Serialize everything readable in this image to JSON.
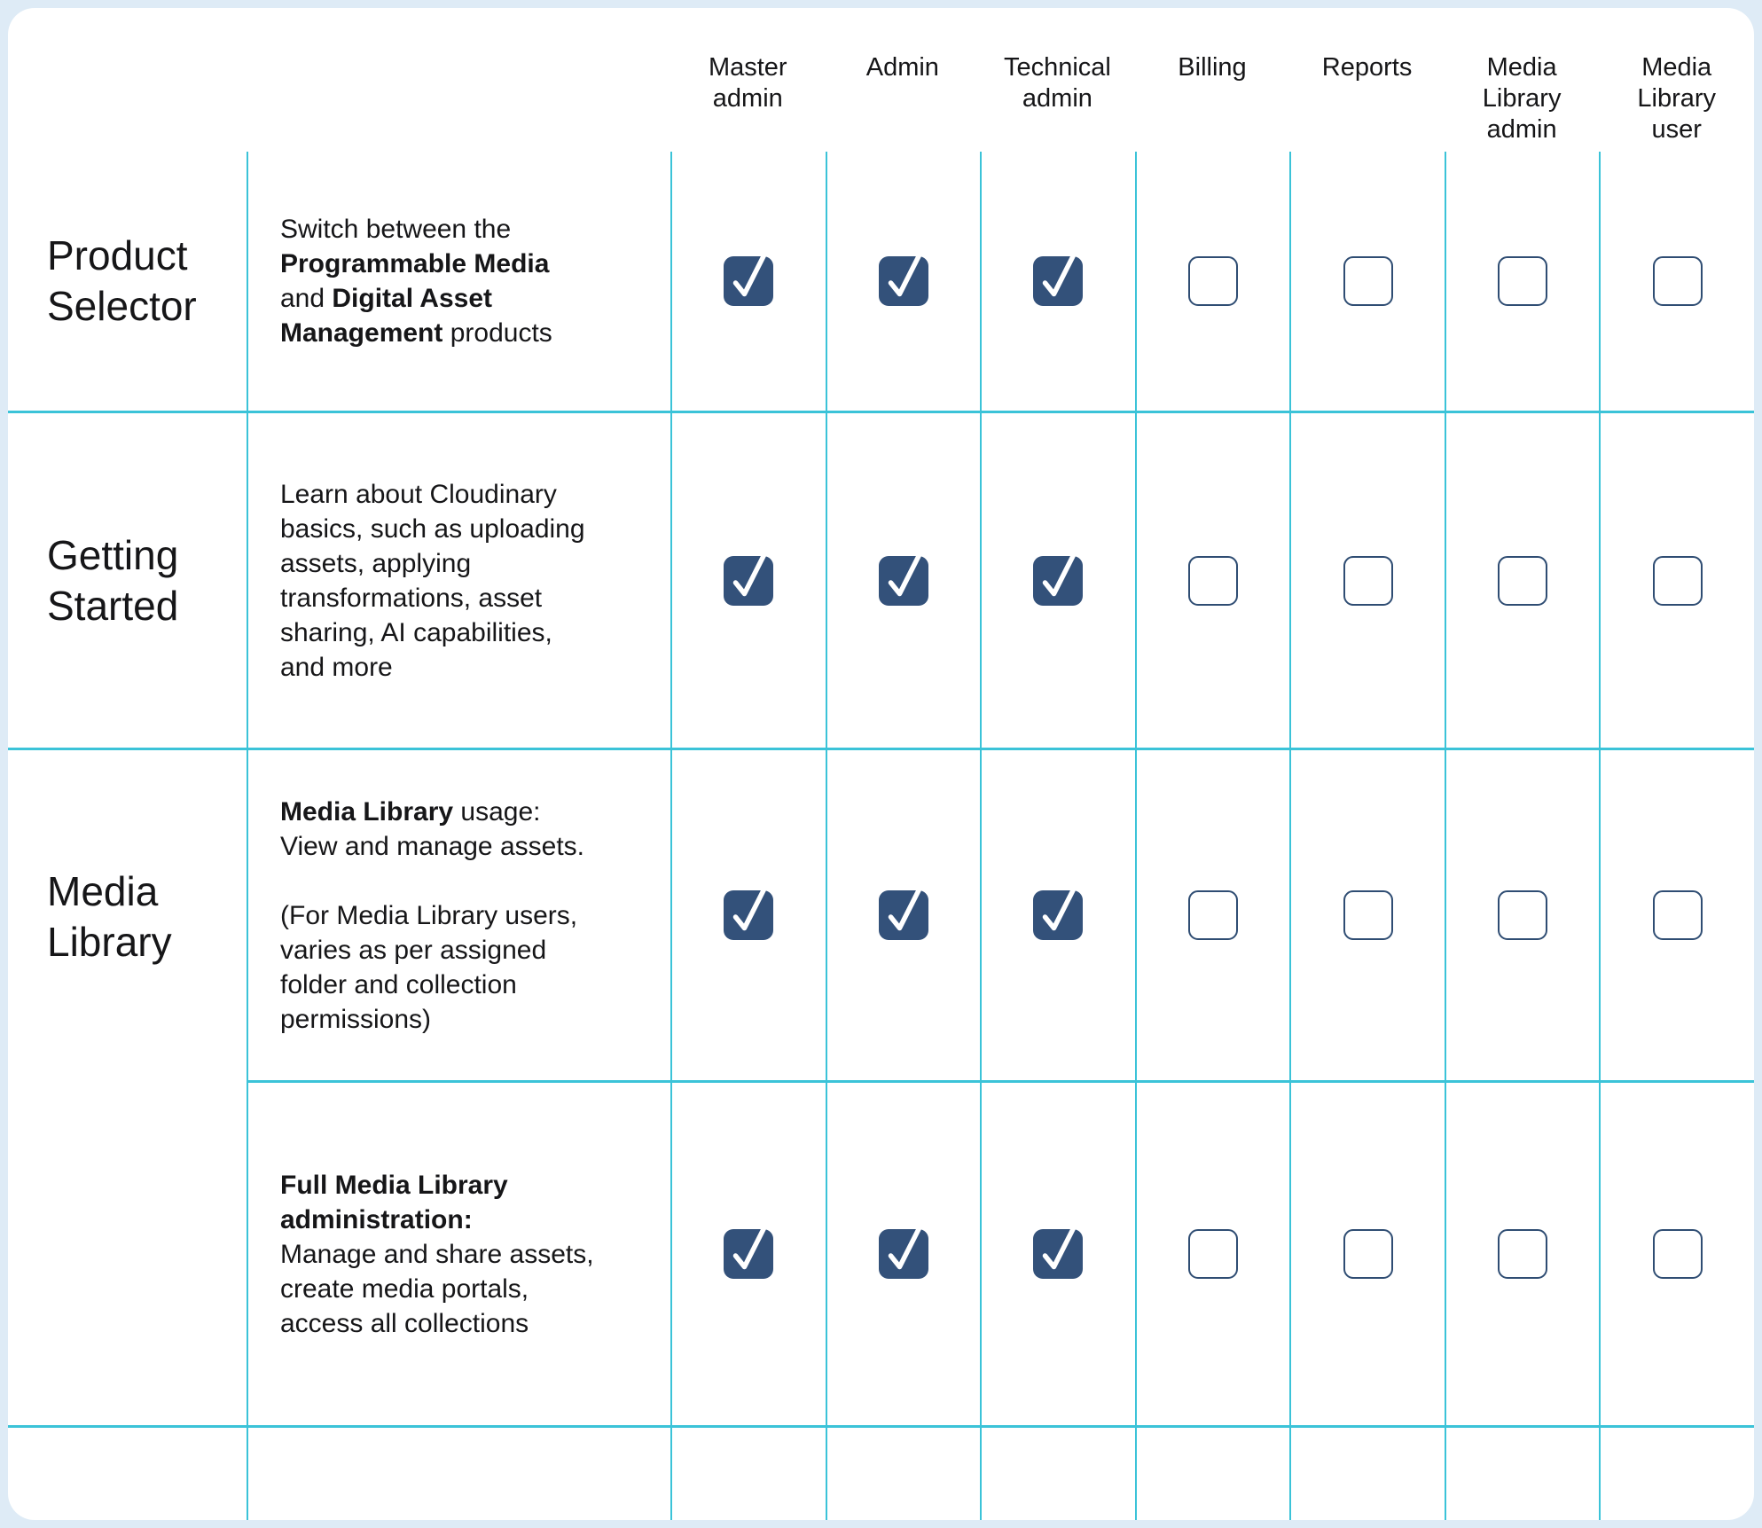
{
  "colors": {
    "page_background": "#deebf6",
    "card_background": "#ffffff",
    "grid_line": "#3bc3d8",
    "checkbox_fill": "#33517a",
    "checkbox_border": "#2f4d73",
    "check_mark": "#ffffff",
    "text_primary": "#161618"
  },
  "columns": [
    "Master\nadmin",
    "Admin",
    "Technical\nadmin",
    "Billing",
    "Reports",
    "Media\nLibrary\nadmin",
    "Media\nLibrary\nuser"
  ],
  "rows": [
    {
      "label": "Product\nSelector",
      "description": [
        {
          "text": "Switch between the\n",
          "bold": false
        },
        {
          "text": "Programmable Media",
          "bold": true
        },
        {
          "text": "\nand ",
          "bold": false
        },
        {
          "text": "Digital Asset\nManagement",
          "bold": true
        },
        {
          "text": " products",
          "bold": false
        }
      ],
      "checks": [
        true,
        true,
        true,
        false,
        false,
        false,
        false
      ]
    },
    {
      "label": "Getting\nStarted",
      "description": [
        {
          "text": "Learn about Cloudinary\nbasics, such as uploading\nassets, applying\ntransformations, asset\nsharing, AI capabilities,\nand more",
          "bold": false
        }
      ],
      "checks": [
        true,
        true,
        true,
        false,
        false,
        false,
        false
      ]
    },
    {
      "label": "Media\nLibrary",
      "label_rowspan": 2,
      "description": [
        {
          "text": "Media Library",
          "bold": true
        },
        {
          "text": " usage:\nView and manage assets.\n\n(For Media Library users,\nvaries as per assigned\nfolder and collection\npermissions)",
          "bold": false
        }
      ],
      "checks": [
        true,
        true,
        true,
        false,
        false,
        false,
        false
      ]
    },
    {
      "label_merged": true,
      "description": [
        {
          "text": "Full Media Library\nadministration:",
          "bold": true
        },
        {
          "text": "\nManage and share assets,\ncreate media portals,\naccess all collections",
          "bold": false
        }
      ],
      "checks": [
        true,
        true,
        true,
        false,
        false,
        false,
        false
      ]
    },
    {
      "label": "",
      "description": [],
      "checks": null
    }
  ]
}
